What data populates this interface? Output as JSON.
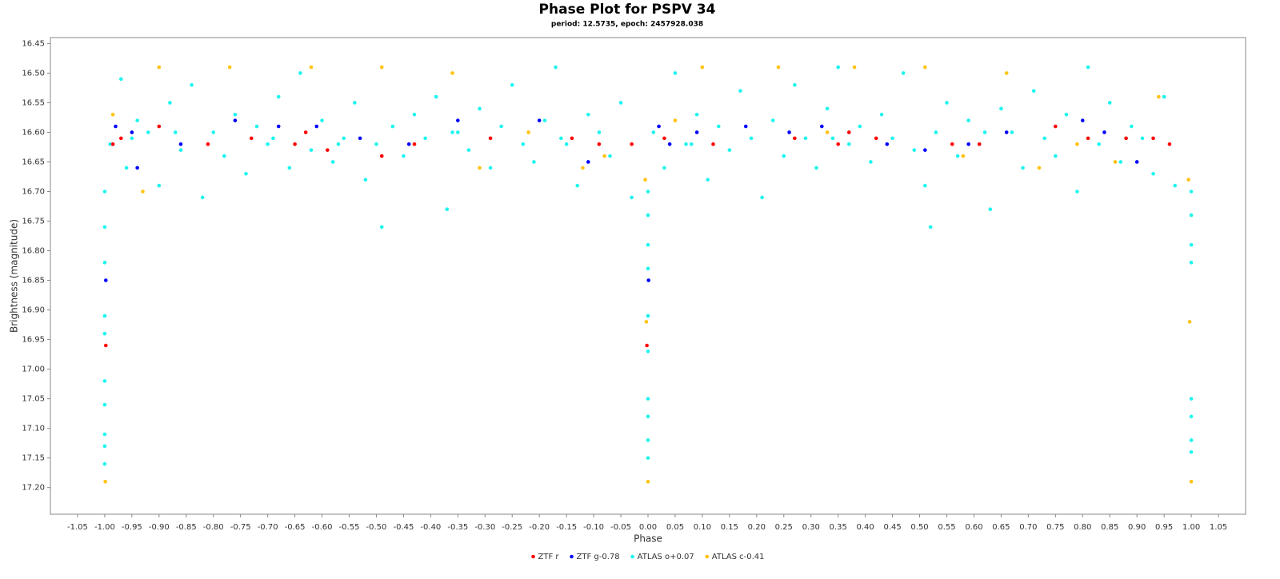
{
  "chart_data": {
    "type": "scatter",
    "title": "Phase Plot for PSPV 34",
    "subtitle": "period: 12.5735, epoch: 2457928.038",
    "x_label": "Phase",
    "y_label": "Brightness (magnitude)",
    "xlim": [
      -1.1,
      1.1
    ],
    "ylim": [
      17.245,
      16.44
    ],
    "y_inverted": true,
    "grid": false,
    "legend_position": "bottom",
    "xticks": [
      -1.05,
      {
        "value": -1,
        "label": "-1.00"
      },
      -0.95,
      {
        "value": -0.9,
        "label": "-0.90"
      },
      -0.85,
      {
        "value": -0.8,
        "label": "-0.80"
      },
      -0.75,
      {
        "value": -0.7,
        "label": "-0.70"
      },
      -0.65,
      {
        "value": -0.6,
        "label": "-0.60"
      },
      -0.55,
      {
        "value": -0.5,
        "label": "-0.50"
      },
      -0.45,
      {
        "value": -0.4,
        "label": "-0.40"
      },
      -0.35,
      {
        "value": -0.3,
        "label": "-0.30"
      },
      -0.25,
      {
        "value": -0.2,
        "label": "-0.20"
      },
      -0.15,
      {
        "value": -0.1,
        "label": "-0.10"
      },
      -0.05,
      {
        "value": 0,
        "label": "0.00"
      },
      0.05,
      {
        "value": 0.1,
        "label": "0.10"
      },
      0.15,
      {
        "value": 0.2,
        "label": "0.20"
      },
      0.25,
      {
        "value": 0.3,
        "label": "0.30"
      },
      0.35,
      {
        "value": 0.4,
        "label": "0.40"
      },
      0.45,
      {
        "value": 0.5,
        "label": "0.50"
      },
      0.55,
      {
        "value": 0.6,
        "label": "0.60"
      },
      0.65,
      {
        "value": 0.7,
        "label": "0.70"
      },
      0.75,
      {
        "value": 0.8,
        "label": "0.80"
      },
      0.85,
      {
        "value": 0.9,
        "label": "0.90"
      },
      0.95,
      {
        "value": 1,
        "label": "1.00"
      },
      1.05
    ],
    "yticks": [
      16.45,
      {
        "value": 16.5,
        "label": "16.50"
      },
      16.55,
      {
        "value": 16.6,
        "label": "16.60"
      },
      16.65,
      {
        "value": 16.7,
        "label": "16.70"
      },
      16.75,
      {
        "value": 16.8,
        "label": "16.80"
      },
      16.85,
      {
        "value": 16.9,
        "label": "16.90"
      },
      16.95,
      {
        "value": 17,
        "label": "17.00"
      },
      17.05,
      {
        "value": 17.1,
        "label": "17.10"
      },
      17.15,
      {
        "value": 17.2,
        "label": "17.20"
      }
    ],
    "series": [
      {
        "name": "ZTF r",
        "color": "#ff0000",
        "x": [
          -0.985,
          -0.97,
          -0.9,
          -0.81,
          -0.73,
          -0.65,
          -0.63,
          -0.59,
          -0.49,
          -0.43,
          -0.29,
          -0.14,
          -0.09,
          -0.03,
          -0.002,
          0.03,
          0.12,
          0.27,
          0.35,
          0.37,
          0.42,
          0.56,
          0.61,
          0.75,
          0.81,
          0.88,
          0.93,
          0.96,
          -0.998
        ],
        "values": [
          16.62,
          16.61,
          16.59,
          16.62,
          16.61,
          16.62,
          16.6,
          16.63,
          16.64,
          16.62,
          16.61,
          16.61,
          16.62,
          16.62,
          16.96,
          16.61,
          16.62,
          16.61,
          16.62,
          16.6,
          16.61,
          16.62,
          16.62,
          16.59,
          16.61,
          16.61,
          16.61,
          16.62,
          16.96
        ]
      },
      {
        "name": "ZTF g-0.78",
        "color": "#0000ff",
        "x": [
          -0.98,
          -0.95,
          -0.94,
          -0.86,
          -0.76,
          -0.68,
          -0.61,
          -0.53,
          -0.44,
          -0.35,
          -0.2,
          -0.11,
          0.02,
          0.04,
          0.09,
          0.18,
          0.26,
          0.32,
          0.44,
          0.51,
          0.59,
          0.66,
          0.8,
          0.84,
          0.9,
          -0.998,
          0.001
        ],
        "values": [
          16.59,
          16.6,
          16.66,
          16.62,
          16.58,
          16.59,
          16.59,
          16.61,
          16.62,
          16.58,
          16.58,
          16.65,
          16.59,
          16.62,
          16.6,
          16.59,
          16.6,
          16.59,
          16.62,
          16.63,
          16.62,
          16.6,
          16.58,
          16.6,
          16.65,
          16.85,
          16.85
        ]
      },
      {
        "name": "ATLAS o+0.07",
        "color": "#1cf4ee",
        "x": [
          -0.99,
          -0.97,
          -0.96,
          -0.94,
          -0.92,
          -0.9,
          -0.88,
          -0.86,
          -0.84,
          -0.82,
          -0.8,
          -0.78,
          -0.76,
          -0.74,
          -0.72,
          -0.7,
          -0.68,
          -0.66,
          -0.64,
          -0.62,
          -0.6,
          -0.58,
          -0.56,
          -0.54,
          -0.52,
          -0.5,
          -0.49,
          -0.47,
          -0.45,
          -0.43,
          -0.41,
          -0.39,
          -0.37,
          -0.35,
          -0.33,
          -0.31,
          -0.29,
          -0.27,
          -0.25,
          -0.23,
          -0.21,
          -0.19,
          -0.17,
          -0.15,
          -0.13,
          -0.11,
          -0.09,
          -0.07,
          -0.05,
          -0.03,
          0.01,
          0.03,
          0.05,
          0.07,
          0.09,
          0.11,
          0.13,
          0.15,
          0.17,
          0.19,
          0.21,
          0.23,
          0.25,
          0.27,
          0.29,
          0.31,
          0.33,
          0.35,
          0.37,
          0.39,
          0.41,
          0.43,
          0.45,
          0.47,
          0.49,
          0.51,
          0.52,
          0.53,
          0.55,
          0.57,
          0.59,
          0.61,
          0.63,
          0.65,
          0.67,
          0.69,
          0.71,
          0.73,
          0.75,
          0.77,
          0.79,
          0.81,
          0.83,
          0.85,
          0.87,
          0.89,
          0.91,
          0.93,
          0.95,
          0.97,
          -1,
          -1,
          -1,
          -1,
          -1,
          -1,
          -1,
          -1,
          -1,
          -1,
          0,
          0,
          0,
          0,
          0,
          0,
          0,
          0,
          0,
          0,
          1,
          1,
          1,
          1,
          1,
          1,
          1,
          1,
          -0.95,
          -0.87,
          -0.69,
          -0.57,
          -0.36,
          -0.16,
          0.08,
          0.34,
          0.62,
          0.88
        ],
        "values": [
          16.62,
          16.51,
          16.66,
          16.58,
          16.6,
          16.69,
          16.55,
          16.63,
          16.52,
          16.71,
          16.6,
          16.64,
          16.57,
          16.67,
          16.59,
          16.62,
          16.54,
          16.66,
          16.5,
          16.63,
          16.58,
          16.65,
          16.61,
          16.55,
          16.68,
          16.62,
          16.76,
          16.59,
          16.64,
          16.57,
          16.61,
          16.54,
          16.73,
          16.6,
          16.63,
          16.56,
          16.66,
          16.59,
          16.52,
          16.62,
          16.65,
          16.58,
          16.49,
          16.62,
          16.69,
          16.57,
          16.6,
          16.64,
          16.55,
          16.71,
          16.6,
          16.66,
          16.5,
          16.62,
          16.57,
          16.68,
          16.59,
          16.63,
          16.53,
          16.61,
          16.71,
          16.58,
          16.64,
          16.52,
          16.61,
          16.66,
          16.56,
          16.49,
          16.62,
          16.59,
          16.65,
          16.57,
          16.61,
          16.5,
          16.63,
          16.69,
          16.76,
          16.6,
          16.55,
          16.64,
          16.58,
          16.62,
          16.73,
          16.56,
          16.6,
          16.66,
          16.53,
          16.61,
          16.64,
          16.57,
          16.7,
          16.49,
          16.62,
          16.55,
          16.65,
          16.59,
          16.61,
          16.67,
          16.54,
          16.69,
          16.7,
          16.76,
          16.82,
          16.91,
          16.94,
          17.02,
          17.06,
          17.11,
          17.13,
          17.16,
          16.74,
          16.79,
          16.83,
          16.91,
          16.97,
          17.05,
          17.08,
          17.12,
          17.15,
          16.7,
          16.74,
          16.79,
          16.82,
          17.05,
          17.08,
          17.12,
          17.14,
          16.7,
          16.61,
          16.6,
          16.61,
          16.62,
          16.6,
          16.61,
          16.62,
          16.61,
          16.6,
          16.61
        ]
      },
      {
        "name": "ATLAS c-0.41",
        "color": "#ffc20e",
        "x": [
          -0.985,
          -0.93,
          -0.9,
          -0.77,
          -0.62,
          -0.49,
          -0.36,
          -0.31,
          -0.22,
          -0.12,
          -0.08,
          -0.005,
          -0.003,
          0.05,
          0.1,
          0.24,
          0.33,
          0.38,
          0.51,
          0.58,
          0.66,
          0.72,
          0.79,
          0.86,
          0.94,
          0.995,
          0.997,
          -0.999,
          0,
          1
        ],
        "values": [
          16.57,
          16.7,
          16.49,
          16.49,
          16.49,
          16.49,
          16.5,
          16.66,
          16.6,
          16.66,
          16.64,
          16.68,
          16.92,
          16.58,
          16.49,
          16.49,
          16.6,
          16.49,
          16.49,
          16.64,
          16.5,
          16.66,
          16.62,
          16.65,
          16.54,
          16.68,
          16.92,
          17.19,
          17.19,
          17.19
        ]
      }
    ]
  }
}
